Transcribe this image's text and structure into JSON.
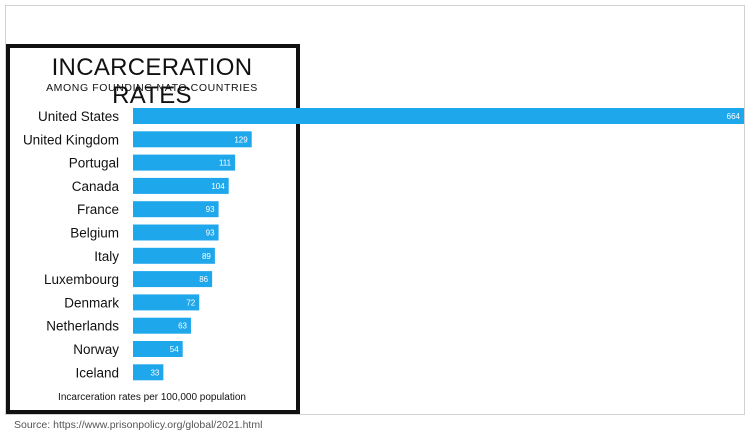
{
  "chart_data": {
    "type": "bar",
    "orientation": "horizontal",
    "title": "INCARCERATION RATES",
    "subtitle": "AMONG FOUNDING NATO COUNTRIES",
    "xlabel": "Incarceration rates per 100,000 population",
    "categories": [
      "United States",
      "United Kingdom",
      "Portugal",
      "Canada",
      "France",
      "Belgium",
      "Italy",
      "Luxembourg",
      "Denmark",
      "Netherlands",
      "Norway",
      "Iceland"
    ],
    "values": [
      664,
      129,
      111,
      104,
      93,
      93,
      89,
      86,
      72,
      63,
      54,
      33
    ],
    "xlim": [
      0,
      664
    ],
    "grid": false,
    "legend": "none",
    "bar_color": "#1fa7ec"
  },
  "source": "Source: https://www.prisonpolicy.org/global/2021.html"
}
